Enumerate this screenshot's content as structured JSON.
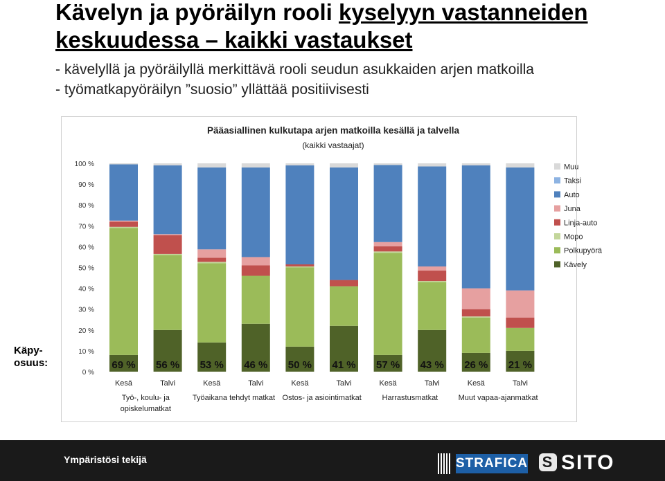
{
  "slide": {
    "title_pre": "Kävelyn ja pyöräilyn rooli ",
    "title_underlined": "kyselyyn vastanneiden",
    "title_line2": "keskuudessa – kaikki vastaukset",
    "bullet1": "- kävelyllä ja pyöräilyllä  merkittävä rooli seudun asukkaiden arjen matkoilla",
    "bullet2": "- työmatkapyöräilyn ”suosio” yllättää positiivisesti",
    "side_label_line1": "Käpy-",
    "side_label_line2": "osuus:"
  },
  "footer": {
    "text": "Ympäristösi tekijä",
    "logo1": "STRAFICA",
    "logo2": "SITO"
  },
  "colors": {
    "Kävely": "#4f6228",
    "Polkupyörä": "#9bbb59",
    "Mopo": "#c3d69b",
    "Linja-auto": "#c0504d",
    "Juna": "#e6a0a0",
    "Auto": "#4f81bd",
    "Taksi": "#8db3e2",
    "Muu": "#d9d9d9"
  },
  "chart_data": {
    "type": "bar",
    "stacked": true,
    "title": "Pääasiallinen kulkutapa arjen matkoilla kesällä ja talvella",
    "subtitle": "(kaikki vastaajat)",
    "ylim": [
      0,
      100
    ],
    "ytick_labels": [
      "0 %",
      "10 %",
      "20 %",
      "30 %",
      "40 %",
      "50 %",
      "60 %",
      "70 %",
      "80 %",
      "90 %",
      "100 %"
    ],
    "legend_position": "right",
    "categories": [
      "Kesä",
      "Talvi",
      "Kesä",
      "Talvi",
      "Kesä",
      "Talvi",
      "Kesä",
      "Talvi",
      "Kesä",
      "Talvi"
    ],
    "groups": [
      "Työ-, koulu- ja opiskelumatkat",
      "Työaikana tehdyt matkat",
      "Ostos- ja asiointimatkat",
      "Harrastusmatkat",
      "Muut vapaa-ajanmatkat"
    ],
    "kapy_labels": [
      "69 %",
      "56 %",
      "53 %",
      "46 %",
      "50 %",
      "41 %",
      "57 %",
      "43 %",
      "26 %",
      "21 %"
    ],
    "series": [
      {
        "name": "Kävely",
        "values": [
          8,
          20,
          14,
          23,
          12,
          22,
          8,
          20,
          9,
          10
        ]
      },
      {
        "name": "Polkupyörä",
        "values": [
          61,
          36,
          38,
          23,
          38,
          19,
          49,
          23,
          17,
          11
        ]
      },
      {
        "name": "Mopo",
        "values": [
          0.5,
          0.5,
          0.7,
          0,
          0.5,
          0,
          0.7,
          0.5,
          0.5,
          0
        ]
      },
      {
        "name": "Linja-auto",
        "values": [
          2.5,
          9,
          2,
          5,
          1,
          3,
          2.5,
          5,
          3.5,
          5
        ]
      },
      {
        "name": "Juna",
        "values": [
          0.5,
          0.5,
          4,
          4,
          0,
          0,
          2,
          2,
          10,
          13
        ]
      },
      {
        "name": "Auto",
        "values": [
          27,
          33,
          39.3,
          43,
          47.5,
          54,
          37,
          48,
          59,
          59
        ]
      },
      {
        "name": "Taksi",
        "values": [
          0,
          0,
          0,
          0,
          0,
          0,
          0,
          0,
          0,
          0
        ]
      },
      {
        "name": "Muu",
        "values": [
          0.5,
          1,
          2,
          2,
          1,
          2,
          0.8,
          1.5,
          1,
          2
        ]
      }
    ]
  }
}
